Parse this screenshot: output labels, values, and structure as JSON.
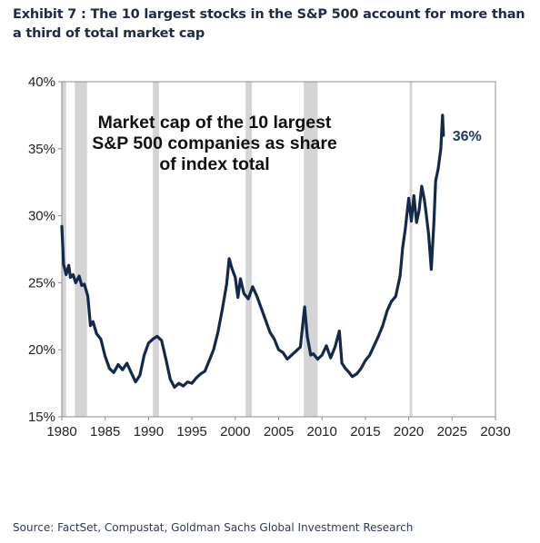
{
  "exhibit": {
    "title": "Exhibit 7 : The 10 largest stocks in the S&P 500 account for more than a third of total market cap",
    "source": "Source: FactSet, Compustat, Goldman Sachs Global Investment Research"
  },
  "chart_data": {
    "type": "line",
    "annotation": [
      "Market cap of the 10 largest",
      "S&P 500 companies as share",
      "of index total"
    ],
    "end_label": "36%",
    "xlim": [
      1980,
      2030
    ],
    "ylim": [
      15,
      40
    ],
    "x_ticks": [
      "1980",
      "1985",
      "1990",
      "1995",
      "2000",
      "2005",
      "2010",
      "2015",
      "2020",
      "2025",
      "2030"
    ],
    "y_ticks": [
      "15%",
      "20%",
      "25%",
      "30%",
      "35%",
      "40%"
    ],
    "recessions": [
      [
        1980.0,
        1980.5
      ],
      [
        1981.5,
        1982.9
      ],
      [
        1990.5,
        1991.2
      ],
      [
        2001.2,
        2001.9
      ],
      [
        2007.9,
        2009.5
      ],
      [
        2020.1,
        2020.4
      ]
    ],
    "series": [
      {
        "color": "#13294b",
        "points": [
          [
            1980.0,
            29.2
          ],
          [
            1980.2,
            26.4
          ],
          [
            1980.5,
            25.6
          ],
          [
            1980.8,
            26.3
          ],
          [
            1981.0,
            25.4
          ],
          [
            1981.3,
            25.6
          ],
          [
            1981.6,
            25.0
          ],
          [
            1982.0,
            25.5
          ],
          [
            1982.3,
            24.8
          ],
          [
            1982.6,
            24.9
          ],
          [
            1983.0,
            24.0
          ],
          [
            1983.3,
            21.8
          ],
          [
            1983.6,
            22.1
          ],
          [
            1984.0,
            21.2
          ],
          [
            1984.5,
            20.8
          ],
          [
            1985.0,
            19.5
          ],
          [
            1985.5,
            18.6
          ],
          [
            1986.0,
            18.3
          ],
          [
            1986.5,
            18.9
          ],
          [
            1987.0,
            18.5
          ],
          [
            1987.5,
            19.0
          ],
          [
            1988.0,
            18.3
          ],
          [
            1988.5,
            17.6
          ],
          [
            1989.0,
            18.1
          ],
          [
            1989.5,
            19.6
          ],
          [
            1990.0,
            20.5
          ],
          [
            1990.5,
            20.8
          ],
          [
            1991.0,
            21.0
          ],
          [
            1991.5,
            20.7
          ],
          [
            1992.0,
            19.3
          ],
          [
            1992.5,
            17.8
          ],
          [
            1993.0,
            17.2
          ],
          [
            1993.5,
            17.5
          ],
          [
            1994.0,
            17.3
          ],
          [
            1994.5,
            17.6
          ],
          [
            1995.0,
            17.5
          ],
          [
            1995.5,
            17.9
          ],
          [
            1996.0,
            18.2
          ],
          [
            1996.5,
            18.4
          ],
          [
            1997.0,
            19.2
          ],
          [
            1997.5,
            20.0
          ],
          [
            1998.0,
            21.3
          ],
          [
            1998.5,
            23.0
          ],
          [
            1999.0,
            24.9
          ],
          [
            1999.3,
            26.8
          ],
          [
            1999.6,
            26.1
          ],
          [
            2000.0,
            25.4
          ],
          [
            2000.3,
            23.9
          ],
          [
            2000.6,
            25.3
          ],
          [
            2001.0,
            24.2
          ],
          [
            2001.5,
            23.8
          ],
          [
            2002.0,
            24.7
          ],
          [
            2002.5,
            24.0
          ],
          [
            2003.0,
            23.1
          ],
          [
            2003.5,
            22.2
          ],
          [
            2004.0,
            21.3
          ],
          [
            2004.5,
            20.8
          ],
          [
            2005.0,
            20.0
          ],
          [
            2005.5,
            19.8
          ],
          [
            2006.0,
            19.3
          ],
          [
            2006.5,
            19.6
          ],
          [
            2007.0,
            19.9
          ],
          [
            2007.5,
            20.2
          ],
          [
            2008.0,
            23.2
          ],
          [
            2008.3,
            21.0
          ],
          [
            2008.7,
            19.6
          ],
          [
            2009.0,
            19.7
          ],
          [
            2009.5,
            19.3
          ],
          [
            2010.0,
            19.6
          ],
          [
            2010.5,
            20.3
          ],
          [
            2011.0,
            19.4
          ],
          [
            2011.5,
            20.2
          ],
          [
            2012.0,
            21.4
          ],
          [
            2012.3,
            19.0
          ],
          [
            2012.7,
            18.6
          ],
          [
            2013.0,
            18.4
          ],
          [
            2013.5,
            18.0
          ],
          [
            2014.0,
            18.2
          ],
          [
            2014.5,
            18.6
          ],
          [
            2015.0,
            19.2
          ],
          [
            2015.5,
            19.6
          ],
          [
            2016.0,
            20.3
          ],
          [
            2016.5,
            21.0
          ],
          [
            2017.0,
            21.8
          ],
          [
            2017.5,
            22.9
          ],
          [
            2018.0,
            23.6
          ],
          [
            2018.5,
            24.0
          ],
          [
            2019.0,
            25.5
          ],
          [
            2019.3,
            27.6
          ],
          [
            2019.6,
            29.0
          ],
          [
            2020.0,
            31.3
          ],
          [
            2020.3,
            29.6
          ],
          [
            2020.6,
            31.5
          ],
          [
            2020.9,
            29.5
          ],
          [
            2021.2,
            30.4
          ],
          [
            2021.5,
            32.2
          ],
          [
            2021.8,
            31.2
          ],
          [
            2022.0,
            30.2
          ],
          [
            2022.3,
            28.6
          ],
          [
            2022.6,
            26.0
          ],
          [
            2022.9,
            29.5
          ],
          [
            2023.1,
            32.6
          ],
          [
            2023.4,
            33.5
          ],
          [
            2023.7,
            35.0
          ],
          [
            2023.9,
            37.5
          ],
          [
            2024.0,
            36.0
          ]
        ]
      }
    ]
  }
}
